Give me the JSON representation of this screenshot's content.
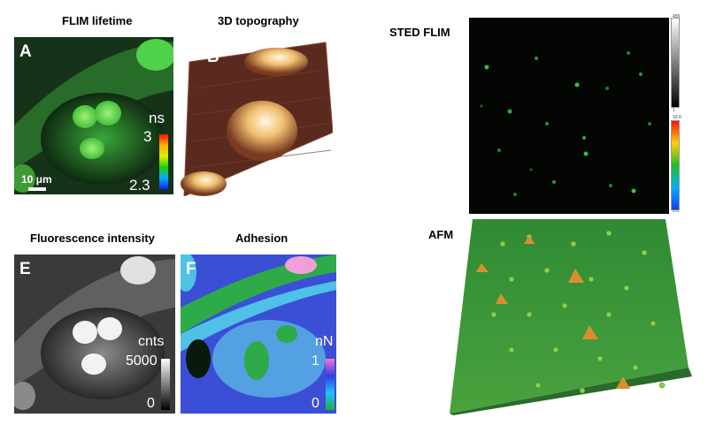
{
  "captions": {
    "flim": "FLIM lifetime",
    "topo": "3D topography",
    "fluor": "Fluorescence intensity",
    "adh": "Adhesion",
    "sted": "STED FLIM",
    "afm": "AFM"
  },
  "panel_a": {
    "letter": "A",
    "unit": "ns",
    "max": "3",
    "min": "2.3",
    "scale_bar": "10 μm"
  },
  "panel_b": {
    "letter": "B"
  },
  "panel_e": {
    "letter": "E",
    "unit": "cnts",
    "max": "5000",
    "min": "0"
  },
  "panel_f": {
    "letter": "F",
    "unit": "nN",
    "max": "1",
    "min": "0"
  },
  "sted_bars": {
    "top_max": "455",
    "top_min": "1",
    "bottom_max": "10.0",
    "bottom_min": "0.0"
  },
  "colors": {
    "flim_green": "#3cc23c",
    "adhesion_blue": "#3a4fd6",
    "topo_brown": "#5a2a1e",
    "afm_green": "#3f9a3a"
  }
}
